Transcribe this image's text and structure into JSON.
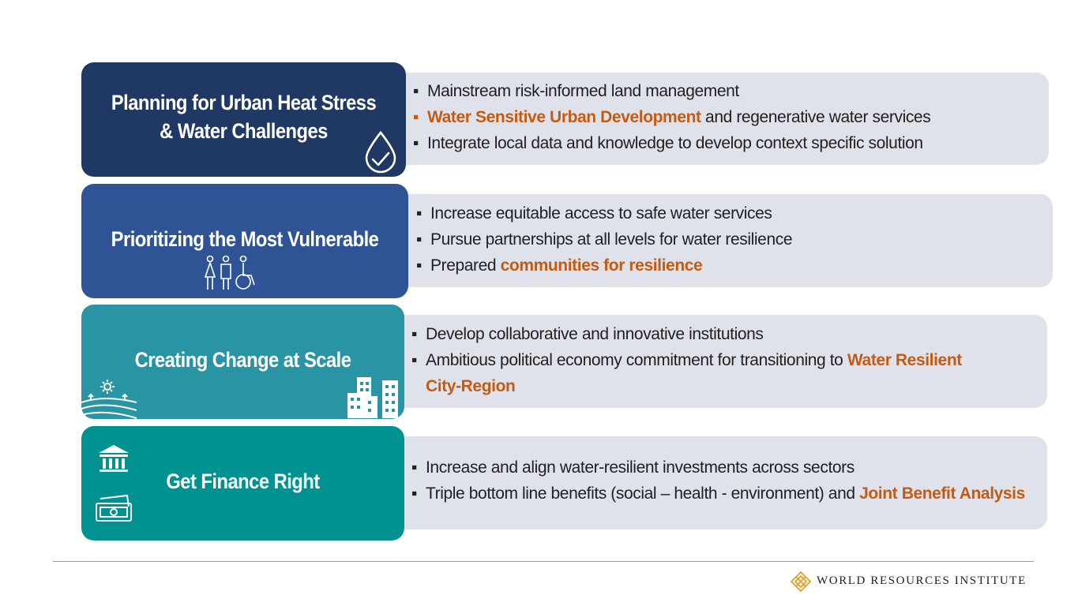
{
  "rows": [
    {
      "title_lines": [
        "Planning for Urban Heat Stress",
        "& Water Challenges"
      ],
      "card_color": "#1f3864",
      "bullets": [
        {
          "pre": "Mainstream risk-informed land management",
          "hl": "",
          "post": ""
        },
        {
          "pre": " ",
          "hl": "Water Sensitive Urban Development",
          "post": " and regenerative water services"
        },
        {
          "pre": "Integrate local data and knowledge to develop context specific solution",
          "hl": "",
          "post": ""
        }
      ]
    },
    {
      "title_lines": [
        "Prioritizing the Most Vulnerable"
      ],
      "card_color": "#2f5496",
      "bullets": [
        {
          "pre": "Increase equitable access to safe water services",
          "hl": "",
          "post": ""
        },
        {
          "pre": "Pursue partnerships at all levels for water resilience",
          "hl": "",
          "post": ""
        },
        {
          "pre": "Prepared ",
          "hl": "communities for resilience",
          "post": ""
        }
      ]
    },
    {
      "title_lines": [
        "Creating Change at Scale"
      ],
      "card_color": "#2994a3",
      "bullets": [
        {
          "pre": "Develop collaborative and innovative institutions",
          "hl": "",
          "post": ""
        },
        {
          "pre": "Ambitious political economy commitment for transitioning to ",
          "hl": "Water Resilient City-Region",
          "post": ""
        }
      ]
    },
    {
      "title_lines": [
        "Get Finance Right"
      ],
      "card_color": "#009290",
      "bullets": [
        {
          "pre": "Increase and align water-resilient investments across sectors",
          "hl": "",
          "post": ""
        },
        {
          "pre": "Triple bottom line benefits (social – health - environment) and ",
          "hl": "Joint Benefit Analysis",
          "post": ""
        }
      ]
    }
  ],
  "bullet_char": "▪",
  "footer": {
    "org": "WORLD RESOURCES INSTITUTE"
  },
  "colors": {
    "panel": "#dfe2ea",
    "highlight": "#c55a11",
    "logo": "#e1a73a"
  }
}
